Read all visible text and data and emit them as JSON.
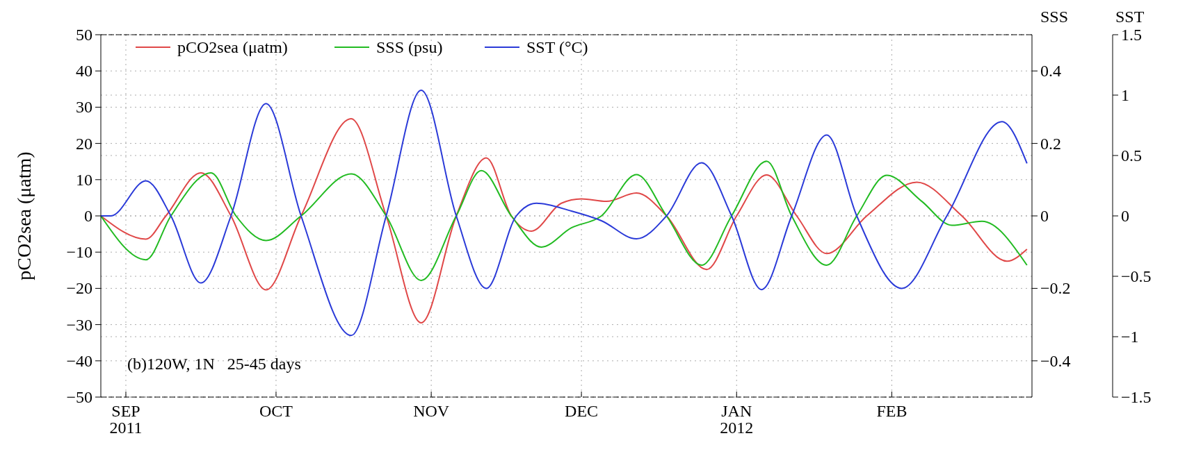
{
  "chart_data": {
    "type": "line",
    "ylabel": "pCO2sea (μatm)",
    "y2label": "SSS",
    "y3label": "SST",
    "annotations": [
      "(b)120W, 1N   25-45 days"
    ],
    "xlim": [
      "2011-08-27",
      "2012-02-29"
    ],
    "xticks": [
      {
        "value": "2011-09-01",
        "label": "SEP\n2011"
      },
      {
        "value": "2011-10-01",
        "label": "OCT"
      },
      {
        "value": "2011-11-01",
        "label": "NOV"
      },
      {
        "value": "2011-12-01",
        "label": "DEC"
      },
      {
        "value": "2012-01-01",
        "label": "JAN\n2012"
      },
      {
        "value": "2012-02-01",
        "label": "FEB"
      }
    ],
    "ylim": [
      -50,
      50
    ],
    "yticks": [
      -50,
      -40,
      -30,
      -20,
      -10,
      0,
      10,
      20,
      30,
      40,
      50
    ],
    "y2lim": [
      -0.5,
      0.5
    ],
    "y2ticks": [
      -0.4,
      -0.2,
      0,
      0.2,
      0.4
    ],
    "y3lim": [
      -1.5,
      1.5
    ],
    "y3ticks": [
      -1.5,
      -1,
      -0.5,
      0,
      0.5,
      1,
      1.5
    ],
    "grid": true,
    "legend": "top",
    "line_style": "solid",
    "series": [
      {
        "name": "pCO2sea (μatm)",
        "color": "#e04848",
        "x": [
          "2011-08-27",
          "2011-09-05",
          "2011-09-09",
          "2011-09-16",
          "2011-09-22",
          "2011-09-29",
          "2011-10-06",
          "2011-10-16",
          "2011-10-23",
          "2011-10-30",
          "2011-11-06",
          "2011-11-12",
          "2011-11-17",
          "2011-11-21",
          "2011-11-27",
          "2011-12-01",
          "2011-12-06",
          "2011-12-12",
          "2011-12-18",
          "2011-12-26",
          "2012-01-01",
          "2012-01-07",
          "2012-01-13",
          "2012-01-19",
          "2012-01-27",
          "2012-02-06",
          "2012-02-15",
          "2012-02-24",
          "2012-02-28"
        ],
        "values": [
          0,
          -6.4,
          0,
          11.9,
          0,
          -20.4,
          0,
          26.8,
          0,
          -29.5,
          0,
          16,
          0,
          -4.2,
          3.5,
          4.7,
          4.0,
          6.3,
          0,
          -14.8,
          0,
          11.3,
          0,
          -10.4,
          0,
          9.3,
          0,
          -12.5,
          -9.2
        ]
      },
      {
        "name": "SSS (psu)",
        "color": "#22bb22",
        "axis": "y2",
        "x": [
          "2011-08-27",
          "2011-09-05",
          "2011-09-10",
          "2011-09-18",
          "2011-09-23",
          "2011-09-29",
          "2011-10-06",
          "2011-10-16",
          "2011-10-23",
          "2011-10-30",
          "2011-11-06",
          "2011-11-11",
          "2011-11-17",
          "2011-11-23",
          "2011-11-29",
          "2011-12-05",
          "2011-12-12",
          "2011-12-18",
          "2011-12-25",
          "2011-12-31",
          "2012-01-07",
          "2012-01-12",
          "2012-01-19",
          "2012-01-25",
          "2012-01-31",
          "2012-02-07",
          "2012-02-13",
          "2012-02-19",
          "2012-02-28"
        ],
        "values": [
          0,
          -0.121,
          0,
          0.119,
          0,
          -0.068,
          0,
          0.116,
          0,
          -0.178,
          0,
          0.125,
          0,
          -0.086,
          -0.033,
          0,
          0.114,
          0,
          -0.136,
          0,
          0.151,
          0,
          -0.136,
          0,
          0.112,
          0.04,
          -0.026,
          -0.015,
          -0.136
        ]
      },
      {
        "name": "SST (°C)",
        "color": "#2a3ad8",
        "axis": "y3",
        "x": [
          "2011-08-27",
          "2011-08-29",
          "2011-09-05",
          "2011-09-10",
          "2011-09-16",
          "2011-09-22",
          "2011-09-29",
          "2011-10-06",
          "2011-10-16",
          "2011-10-23",
          "2011-10-30",
          "2011-11-06",
          "2011-11-12",
          "2011-11-18",
          "2011-11-22",
          "2011-11-29",
          "2011-12-05",
          "2011-12-12",
          "2011-12-18",
          "2011-12-25",
          "2011-12-31",
          "2012-01-06",
          "2012-01-12",
          "2012-01-19",
          "2012-01-25",
          "2012-02-03",
          "2012-02-12",
          "2012-02-23",
          "2012-02-28"
        ],
        "values": [
          0,
          0,
          0.29,
          0,
          -0.555,
          0,
          0.93,
          0,
          -0.99,
          0,
          1.04,
          0,
          -0.6,
          0,
          0.105,
          0.04,
          -0.04,
          -0.19,
          0,
          0.44,
          0,
          -0.61,
          0,
          0.67,
          0,
          -0.6,
          0,
          0.78,
          0.435
        ]
      }
    ]
  }
}
